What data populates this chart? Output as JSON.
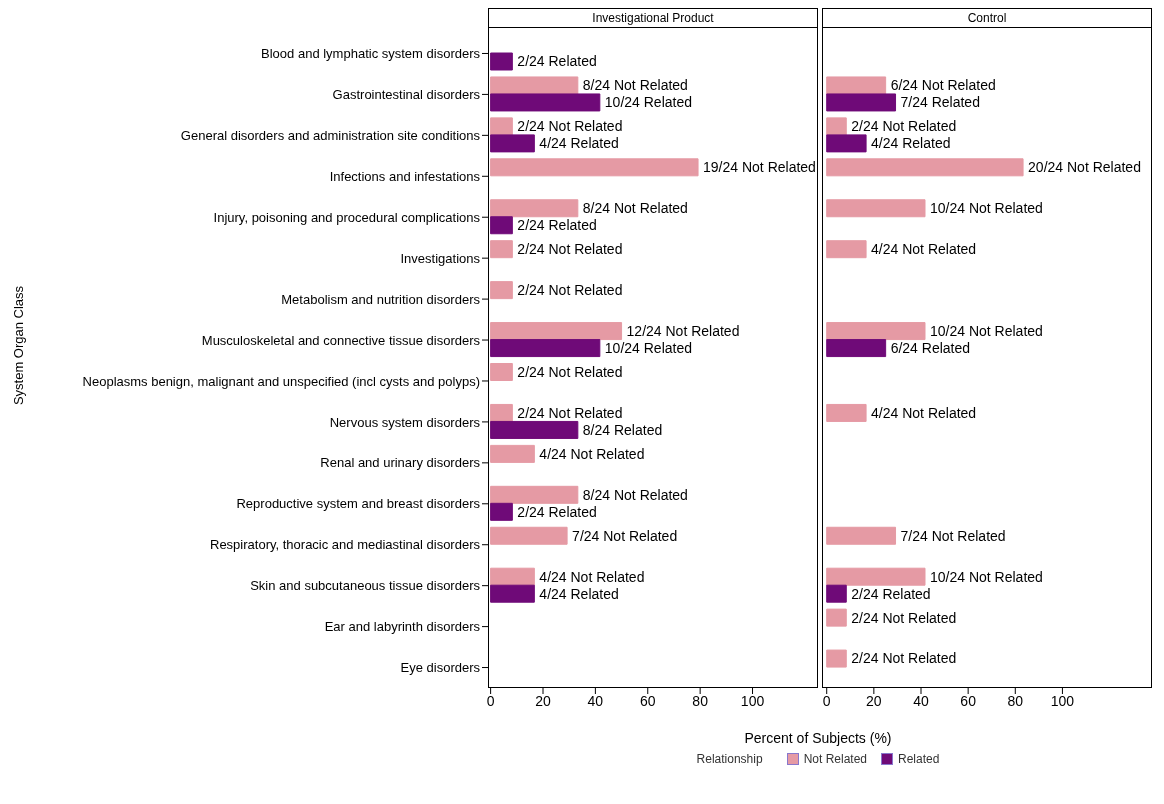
{
  "chart_data": [
    {
      "type": "bar",
      "orientation": "horizontal",
      "title": "Investigational Product",
      "ylabel": "System Organ Class",
      "xlabel": "Percent of Subjects (%)",
      "legend_title": "Relationship",
      "legend": "bottom",
      "categories": [
        "Blood and lymphatic system disorders",
        "Gastrointestinal disorders",
        "General disorders and administration site conditions",
        "Infections and infestations",
        "Injury, poisoning and procedural complications",
        "Investigations",
        "Metabolism and nutrition disorders",
        "Musculoskeletal and connective tissue disorders",
        "Neoplasms benign, malignant and unspecified (incl cysts and polyps)",
        "Nervous system disorders",
        "Renal and urinary disorders",
        "Reproductive system and breast disorders",
        "Respiratory, thoracic and mediastinal disorders",
        "Skin and subcutaneous tissue disorders",
        "Ear and labyrinth disorders",
        "Eye disorders"
      ],
      "series": [
        {
          "name": "Not Related",
          "color": "#e59aa4",
          "values": [
            null,
            33.3,
            8.3,
            79.2,
            33.3,
            8.3,
            8.3,
            50,
            8.3,
            8.3,
            16.7,
            33.3,
            29.2,
            16.7,
            null,
            null
          ],
          "value_labels": [
            null,
            "8/24 Not Related",
            "2/24 Not Related",
            "19/24 Not Related",
            "8/24 Not Related",
            "2/24 Not Related",
            "2/24 Not Related",
            "12/24 Not Related",
            "2/24 Not Related",
            "2/24 Not Related",
            "4/24 Not Related",
            "8/24 Not Related",
            "7/24 Not Related",
            "4/24 Not Related",
            null,
            null
          ]
        },
        {
          "name": "Related",
          "color": "#6f0a78",
          "values": [
            8.3,
            41.7,
            16.7,
            null,
            8.3,
            null,
            null,
            41.7,
            null,
            33.3,
            null,
            8.3,
            null,
            16.7,
            null,
            null
          ],
          "value_labels": [
            "2/24 Related",
            "10/24 Related",
            "4/24 Related",
            null,
            "2/24 Related",
            null,
            null,
            "10/24 Related",
            null,
            "8/24 Related",
            null,
            "2/24 Related",
            null,
            "4/24 Related",
            null,
            null
          ]
        }
      ],
      "xlim": [
        -1,
        125
      ],
      "xticks": [
        0,
        20,
        40,
        60,
        80,
        100
      ]
    },
    {
      "type": "bar",
      "orientation": "horizontal",
      "title": "Control",
      "tick_labels": "x",
      "categories": [
        null,
        null,
        null,
        null,
        null,
        null,
        null,
        null,
        null,
        null,
        null,
        null,
        null,
        null,
        null,
        null
      ],
      "series": [
        {
          "color": "#e59aa4",
          "values": [
            null,
            25,
            8.3,
            83.3,
            41.7,
            16.7,
            null,
            41.7,
            null,
            16.7,
            null,
            null,
            29.2,
            41.7,
            8.3,
            8.3
          ],
          "value_labels": [
            null,
            "6/24 Not Related",
            "2/24 Not Related",
            "20/24 Not Related",
            "10/24 Not Related",
            "4/24 Not Related",
            null,
            "10/24 Not Related",
            null,
            "4/24 Not Related",
            null,
            null,
            "7/24 Not Related",
            "10/24 Not Related",
            "2/24 Not Related",
            "2/24 Not Related"
          ]
        },
        {
          "color": "#6f0a78",
          "values": [
            null,
            29.2,
            16.7,
            null,
            null,
            null,
            null,
            25,
            null,
            null,
            null,
            null,
            null,
            8.3,
            null,
            null
          ],
          "value_labels": [
            null,
            "7/24 Related",
            "4/24 Related",
            null,
            null,
            null,
            null,
            "6/24 Related",
            null,
            null,
            null,
            null,
            null,
            "2/24 Related",
            null,
            null
          ]
        }
      ],
      "xlim": [
        -2,
        138
      ],
      "xticks": [
        0,
        20,
        40,
        60,
        80,
        100
      ]
    }
  ]
}
